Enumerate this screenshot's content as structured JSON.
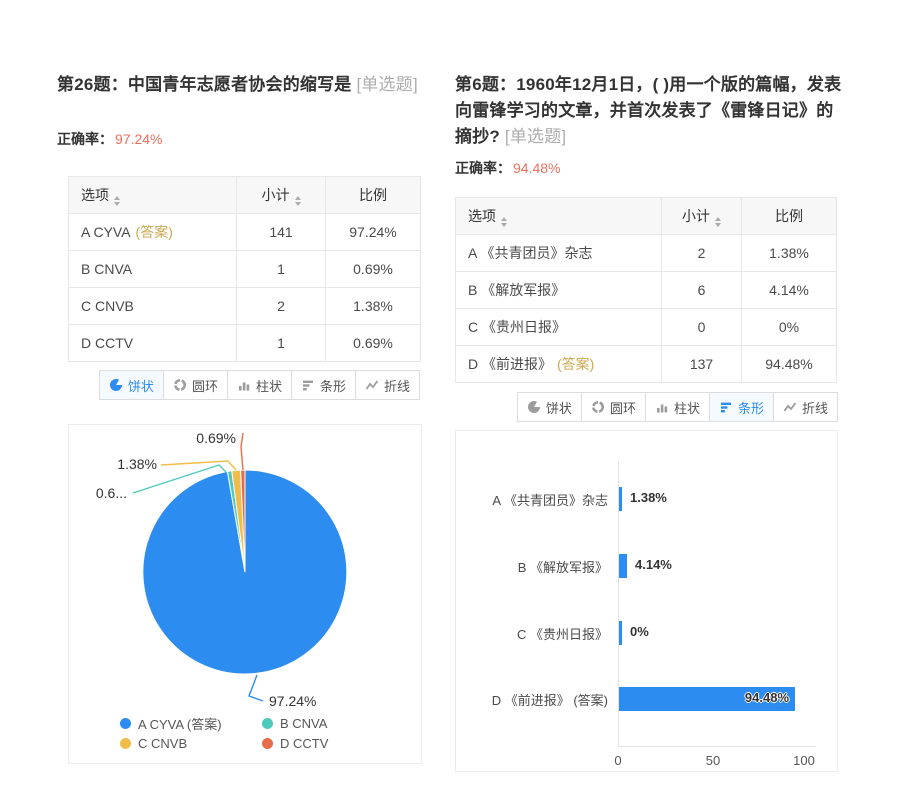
{
  "palette": {
    "accent_blue": "#2d8cf0",
    "teal": "#4fc9bc",
    "yellow": "#f0bd4a",
    "orange": "#e96c48",
    "rate_red": "#ee6e5f",
    "answer_gold": "#c9a94f"
  },
  "questions": [
    {
      "title": "第26题：中国青年志愿者协会的缩写是",
      "type_tag": " [单选题]",
      "rate_label": "正确率：",
      "rate_value": "97.24%",
      "table": {
        "col_option": "选项",
        "col_count": "小计",
        "col_ratio": "比例",
        "rows": [
          {
            "option": "A CYVA",
            "answer": "(答案)",
            "count": "141",
            "ratio": "97.24%"
          },
          {
            "option": "B CNVA",
            "count": "1",
            "ratio": "0.69%"
          },
          {
            "option": "C CNVB",
            "count": "2",
            "ratio": "1.38%"
          },
          {
            "option": "D CCTV",
            "count": "1",
            "ratio": "0.69%"
          }
        ]
      },
      "tabs": [
        {
          "label": "饼状"
        },
        {
          "label": "圆环"
        },
        {
          "label": "柱状"
        },
        {
          "label": "条形"
        },
        {
          "label": "折线"
        }
      ],
      "selected_tab": "饼状"
    },
    {
      "title": "第6题：1960年12月1日，( )用一个版的篇幅，发表向雷锋学习的文章，并首次发表了《雷锋日记》的摘抄?",
      "type_tag": " [单选题]",
      "rate_label": "正确率：",
      "rate_value": "94.48%",
      "table": {
        "col_option": "选项",
        "col_count": "小计",
        "col_ratio": "比例",
        "rows": [
          {
            "option": "A 《共青团员》杂志",
            "count": "2",
            "ratio": "1.38%"
          },
          {
            "option": "B 《解放军报》",
            "count": "6",
            "ratio": "4.14%"
          },
          {
            "option": "C 《贵州日报》",
            "count": "0",
            "ratio": "0%"
          },
          {
            "option": "D 《前进报》",
            "answer": "(答案)",
            "count": "137",
            "ratio": "94.48%"
          }
        ]
      },
      "tabs": [
        {
          "label": "饼状"
        },
        {
          "label": "圆环"
        },
        {
          "label": "柱状"
        },
        {
          "label": "条形"
        },
        {
          "label": "折线"
        }
      ],
      "selected_tab": "条形"
    }
  ],
  "chart_data": [
    {
      "type": "pie",
      "title": "",
      "categories": [
        "A CYVA (答案)",
        "B CNVA",
        "C CNVB",
        "D CCTV"
      ],
      "values": [
        97.24,
        0.69,
        1.38,
        0.69
      ],
      "display_labels": [
        "97.24%",
        "0.6...",
        "1.38%",
        "0.69%"
      ],
      "colors": [
        "#2d8cf0",
        "#4fc9bc",
        "#f0bd4a",
        "#e96c48"
      ],
      "legend": [
        "A CYVA (答案)",
        "B CNVA",
        "C CNVB",
        "D CCTV"
      ],
      "legend_position": "bottom"
    },
    {
      "type": "bar",
      "orientation": "horizontal",
      "title": "",
      "categories": [
        "A 《共青团员》杂志",
        "B 《解放军报》",
        "C 《贵州日报》",
        "D 《前进报》 (答案)"
      ],
      "values": [
        1.38,
        4.14,
        0,
        94.48
      ],
      "display_labels": [
        "1.38%",
        "4.14%",
        "0%",
        "94.48%"
      ],
      "color": "#2d8cf0",
      "xlim": [
        0,
        100
      ],
      "x_ticks": [
        "0",
        "50",
        "100"
      ],
      "grid": false
    }
  ]
}
